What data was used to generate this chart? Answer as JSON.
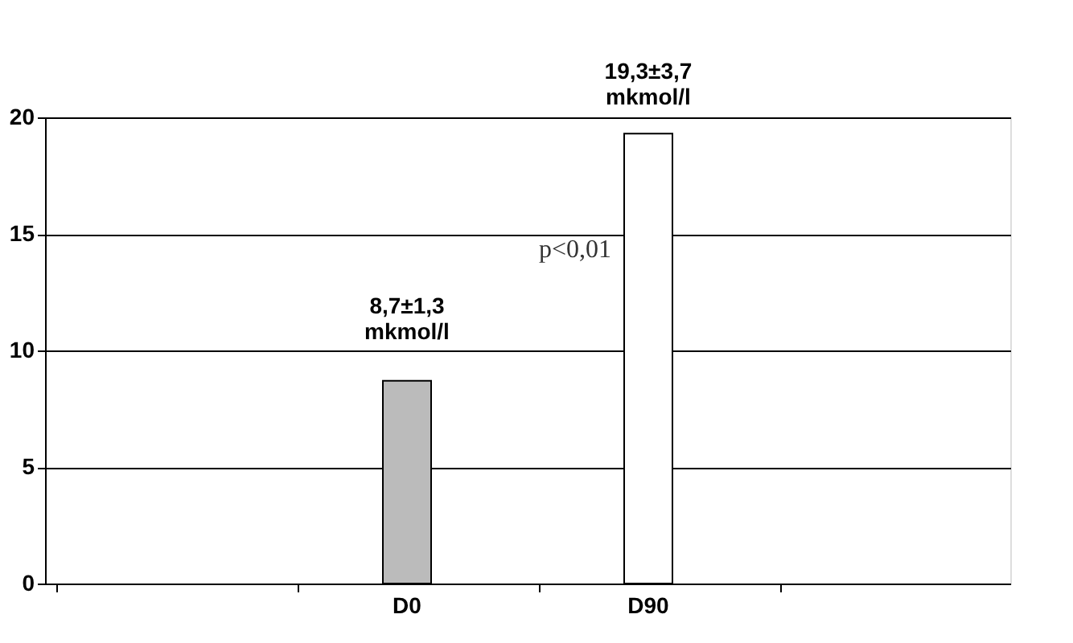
{
  "chart_data": {
    "type": "bar",
    "categories": [
      null,
      "D0",
      "D90",
      null
    ],
    "values": [
      null,
      8.7,
      19.3,
      null
    ],
    "colors": [
      "#bbbbbb",
      "#bbbbbb",
      "#ffffff",
      "#bbbbbb"
    ],
    "value_labels": [
      null,
      "8,7±1,3\nmkmol/l",
      "19,3±3,7\nmkmol/l",
      null
    ],
    "annotations": [
      "p<0,01"
    ],
    "ylim": [
      0,
      20
    ],
    "yticks": [
      0,
      5,
      10,
      15,
      20
    ],
    "grid": "y"
  }
}
